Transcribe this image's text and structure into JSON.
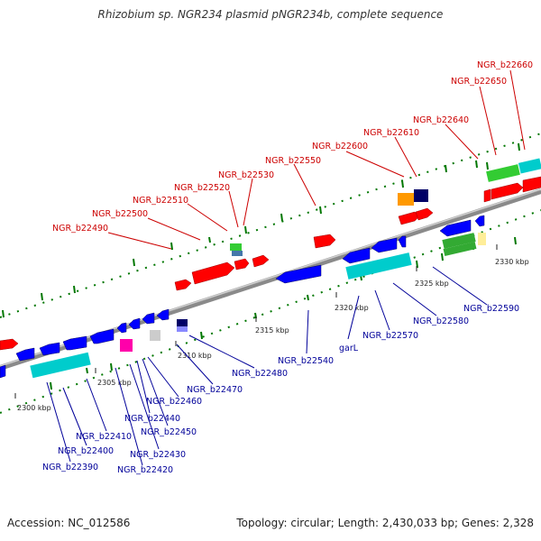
{
  "title": "Rhizobium sp. NGR234 plasmid pNGR234b, complete sequence",
  "footer": {
    "accession": "Accession: NC_012586",
    "summary": "Topology: circular; Length: 2,430,033 bp; Genes: 2,328"
  },
  "colors": {
    "forward_label": "#cc0000",
    "reverse_label": "#000099",
    "forward_gene": "#ff0000",
    "reverse_gene": "#0000ff",
    "cds": "#00cccc",
    "rna": "#33cc33",
    "backbone": "#8a8a8a",
    "gc_dots": "#007700"
  },
  "scale_ticks": [
    "2300 kbp",
    "2305 kbp",
    "2310 kbp",
    "2315 kbp",
    "2320 kbp",
    "2325 kbp",
    "2330 kbp"
  ],
  "forward_labels": [
    "NGR_b22490",
    "NGR_b22500",
    "NGR_b22510",
    "NGR_b22520",
    "NGR_b22530",
    "NGR_b22550",
    "NGR_b22600",
    "NGR_b22610",
    "NGR_b22640",
    "NGR_b22650",
    "NGR_b22660"
  ],
  "reverse_labels": [
    "NGR_b22390",
    "NGR_b22400",
    "NGR_b22410",
    "NGR_b22420",
    "NGR_b22430",
    "NGR_b22440",
    "NGR_b22450",
    "NGR_b22460",
    "NGR_b22470",
    "NGR_b22480",
    "NGR_b22540",
    "garL",
    "NGR_b22570",
    "NGR_b22580",
    "NGR_b22590"
  ]
}
